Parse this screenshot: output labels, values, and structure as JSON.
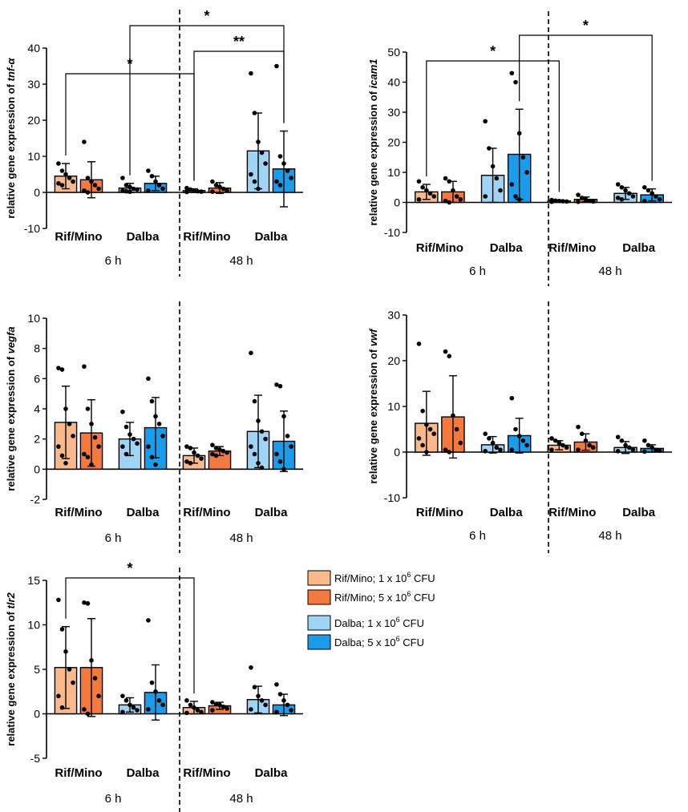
{
  "chart_data": [
    {
      "type": "bar",
      "ylabel": "relative gene expression of",
      "gene": "tnf-α",
      "ylim": [
        -10,
        40
      ],
      "yticks": [
        "-10",
        "0",
        "10",
        "20",
        "30",
        "40"
      ],
      "timepoints": [
        "6 h",
        "48 h"
      ],
      "groups": [
        "Rif/Mino",
        "Dalba",
        "Rif/Mino",
        "Dalba"
      ],
      "series": [
        {
          "name": "Rif/Mino; 1 x 10^6 CFU",
          "group": 0,
          "mean": 4.5,
          "sd": 3.5,
          "points": [
            8,
            6,
            5,
            4,
            3,
            2.5,
            2
          ]
        },
        {
          "name": "Rif/Mino; 5 x 10^6 CFU",
          "group": 0,
          "mean": 3.5,
          "sd": 5,
          "points": [
            14,
            4,
            3,
            2,
            1,
            0.5,
            0
          ]
        },
        {
          "name": "Dalba; 1 x 10^6 CFU",
          "group": 1,
          "mean": 1.2,
          "sd": 1.3,
          "points": [
            4,
            2,
            1.5,
            1,
            0.8,
            0.5,
            0.3,
            0.2
          ]
        },
        {
          "name": "Dalba; 5 x 10^6 CFU",
          "group": 1,
          "mean": 2.5,
          "sd": 2,
          "points": [
            6,
            4.5,
            3,
            2,
            1,
            0.5
          ]
        },
        {
          "name": "Rif/Mino; 1 x 10^6 CFU",
          "group": 2,
          "mean": 0.5,
          "sd": 0.5,
          "points": [
            1.2,
            0.8,
            0.5,
            0.3,
            0.2,
            0.1
          ]
        },
        {
          "name": "Rif/Mino; 5 x 10^6 CFU",
          "group": 2,
          "mean": 1.2,
          "sd": 1.5,
          "points": [
            3,
            2,
            1.5,
            1,
            0.5,
            0.2
          ]
        },
        {
          "name": "Dalba; 1 x 10^6 CFU",
          "group": 3,
          "mean": 11.5,
          "sd": 10.5,
          "points": [
            33,
            22,
            14,
            11,
            8,
            5,
            3,
            1
          ]
        },
        {
          "name": "Dalba; 5 x 10^6 CFU",
          "group": 3,
          "mean": 6.5,
          "sd": 10.5,
          "points": [
            35,
            10,
            8,
            6,
            4,
            3,
            2
          ]
        }
      ],
      "significance": [
        {
          "from": 0,
          "to": 4,
          "label": "*"
        },
        {
          "from": 4,
          "to": 7,
          "label": "**"
        },
        {
          "from": 2,
          "to": 7,
          "label": "*"
        }
      ]
    },
    {
      "type": "bar",
      "ylabel": "relative gene expression of",
      "gene": "icam1",
      "ylim": [
        -10,
        50
      ],
      "yticks": [
        "-10",
        "0",
        "10",
        "20",
        "30",
        "40",
        "50"
      ],
      "timepoints": [
        "6 h",
        "48 h"
      ],
      "groups": [
        "Rif/Mino",
        "Dalba",
        "Rif/Mino",
        "Dalba"
      ],
      "series": [
        {
          "name": "Rif/Mino; 1 x 10^6 CFU",
          "group": 0,
          "mean": 3.5,
          "sd": 2.5,
          "points": [
            7,
            5,
            4,
            3,
            2,
            1
          ]
        },
        {
          "name": "Rif/Mino; 5 x 10^6 CFU",
          "group": 0,
          "mean": 3.5,
          "sd": 3.5,
          "points": [
            8,
            7,
            4,
            2,
            1,
            0.5,
            0
          ]
        },
        {
          "name": "Dalba; 1 x 10^6 CFU",
          "group": 1,
          "mean": 9,
          "sd": 9,
          "points": [
            27,
            18,
            12,
            8,
            4,
            2
          ]
        },
        {
          "name": "Dalba; 5 x 10^6 CFU",
          "group": 1,
          "mean": 16,
          "sd": 15,
          "points": [
            43,
            40,
            23,
            15,
            10,
            6,
            2,
            1
          ]
        },
        {
          "name": "Rif/Mino; 1 x 10^6 CFU",
          "group": 2,
          "mean": 0.5,
          "sd": 0.3,
          "points": [
            0.8,
            0.6,
            0.5,
            0.4,
            0.3,
            0.2
          ]
        },
        {
          "name": "Rif/Mino; 5 x 10^6 CFU",
          "group": 2,
          "mean": 1,
          "sd": 0.8,
          "points": [
            2.5,
            1.5,
            1,
            0.5,
            0.3,
            0.2
          ]
        },
        {
          "name": "Dalba; 1 x 10^6 CFU",
          "group": 3,
          "mean": 3,
          "sd": 2,
          "points": [
            6,
            5,
            4,
            3,
            2,
            1.5,
            1
          ]
        },
        {
          "name": "Dalba; 5 x 10^6 CFU",
          "group": 3,
          "mean": 2.5,
          "sd": 2,
          "points": [
            5,
            4,
            3,
            2,
            1,
            0.5
          ]
        }
      ],
      "significance": [
        {
          "from": 0,
          "to": 4,
          "label": "*"
        },
        {
          "from": 3,
          "to": 7,
          "label": "*"
        }
      ]
    },
    {
      "type": "bar",
      "ylabel": "relative gene expression of",
      "gene": "vegfa",
      "ylim": [
        -2,
        10
      ],
      "yticks": [
        "-2",
        "0",
        "2",
        "4",
        "6",
        "8",
        "10"
      ],
      "timepoints": [
        "6 h",
        "48 h"
      ],
      "groups": [
        "Rif/Mino",
        "Dalba",
        "Rif/Mino",
        "Dalba"
      ],
      "series": [
        {
          "name": "Rif/Mino; 1 x 10^6 CFU",
          "group": 0,
          "mean": 3.1,
          "sd": 2.4,
          "points": [
            6.7,
            6.6,
            4,
            3,
            2.2,
            1.5,
            0.9,
            0.4
          ]
        },
        {
          "name": "Rif/Mino; 5 x 10^6 CFU",
          "group": 0,
          "mean": 2.4,
          "sd": 2.2,
          "points": [
            6.8,
            4,
            3,
            2.1,
            1.5,
            1,
            0.8,
            0.3
          ]
        },
        {
          "name": "Dalba; 1 x 10^6 CFU",
          "group": 1,
          "mean": 2.0,
          "sd": 1.1,
          "points": [
            3.8,
            2.8,
            2.3,
            2,
            1.7,
            1.5,
            1
          ]
        },
        {
          "name": "Dalba; 5 x 10^6 CFU",
          "group": 1,
          "mean": 2.75,
          "sd": 2,
          "points": [
            6,
            4.5,
            3.5,
            3,
            2.2,
            1.5,
            0.8,
            0.3
          ]
        },
        {
          "name": "Rif/Mino; 1 x 10^6 CFU",
          "group": 2,
          "mean": 0.9,
          "sd": 0.5,
          "points": [
            1.5,
            1.4,
            1.1,
            0.9,
            0.7,
            0.5,
            0.4
          ]
        },
        {
          "name": "Rif/Mino; 5 x 10^6 CFU",
          "group": 2,
          "mean": 1.2,
          "sd": 0.3,
          "points": [
            1.6,
            1.4,
            1.3,
            1.2,
            1.1,
            1,
            0.9
          ]
        },
        {
          "name": "Dalba; 1 x 10^6 CFU",
          "group": 3,
          "mean": 2.5,
          "sd": 2.4,
          "points": [
            7.7,
            4.5,
            3.2,
            2.5,
            2,
            1.5,
            1,
            0.4,
            0.1
          ]
        },
        {
          "name": "Dalba; 5 x 10^6 CFU",
          "group": 3,
          "mean": 1.85,
          "sd": 2,
          "points": [
            5.6,
            5.5,
            3.5,
            2.2,
            1.5,
            1,
            0.5,
            0
          ]
        }
      ],
      "significance": []
    },
    {
      "type": "bar",
      "ylabel": "relative gene expression of",
      "gene": "vwf",
      "ylim": [
        -10,
        30
      ],
      "yticks": [
        "-10",
        "0",
        "10",
        "20",
        "30"
      ],
      "timepoints": [
        "6 h",
        "48 h"
      ],
      "groups": [
        "Rif/Mino",
        "Dalba",
        "Rif/Mino",
        "Dalba"
      ],
      "series": [
        {
          "name": "Rif/Mino; 1 x 10^6 CFU",
          "group": 0,
          "mean": 6.3,
          "sd": 7,
          "points": [
            23.7,
            9,
            6,
            5,
            4,
            3,
            1.5,
            0
          ]
        },
        {
          "name": "Rif/Mino; 5 x 10^6 CFU",
          "group": 0,
          "mean": 7.7,
          "sd": 9,
          "points": [
            22,
            21,
            8,
            5,
            2,
            0.5,
            0
          ]
        },
        {
          "name": "Dalba; 1 x 10^6 CFU",
          "group": 1,
          "mean": 1.6,
          "sd": 1.8,
          "points": [
            4,
            3,
            2,
            1,
            0.5,
            0.2
          ]
        },
        {
          "name": "Dalba; 5 x 10^6 CFU",
          "group": 1,
          "mean": 3.6,
          "sd": 3.8,
          "points": [
            11.8,
            5,
            3.5,
            2.5,
            1.5,
            0.5
          ]
        },
        {
          "name": "Rif/Mino; 1 x 10^6 CFU",
          "group": 2,
          "mean": 1.5,
          "sd": 1,
          "points": [
            3,
            2.5,
            2,
            1.5,
            1,
            0.5
          ]
        },
        {
          "name": "Rif/Mino; 5 x 10^6 CFU",
          "group": 2,
          "mean": 2.2,
          "sd": 1.8,
          "points": [
            5.5,
            4,
            2.5,
            1.5,
            1,
            0.5
          ]
        },
        {
          "name": "Dalba; 1 x 10^6 CFU",
          "group": 3,
          "mean": 1,
          "sd": 1.3,
          "points": [
            3.3,
            2.5,
            1.5,
            1,
            0.5,
            0.2
          ]
        },
        {
          "name": "Dalba; 5 x 10^6 CFU",
          "group": 3,
          "mean": 0.8,
          "sd": 0.8,
          "points": [
            2.5,
            1.5,
            1,
            0.5,
            0.3,
            0.1
          ]
        }
      ],
      "significance": []
    },
    {
      "type": "bar",
      "ylabel": "relative gene expression of",
      "gene": "tlr2",
      "ylim": [
        -5,
        15
      ],
      "yticks": [
        "-5",
        "0",
        "5",
        "10",
        "15"
      ],
      "timepoints": [
        "6 h",
        "48 h"
      ],
      "groups": [
        "Rif/Mino",
        "Dalba",
        "Rif/Mino",
        "Dalba"
      ],
      "series": [
        {
          "name": "Rif/Mino; 1 x 10^6 CFU",
          "group": 0,
          "mean": 5.2,
          "sd": 4.6,
          "points": [
            12.8,
            9.5,
            7,
            5,
            3.5,
            2,
            0.7
          ]
        },
        {
          "name": "Rif/Mino; 5 x 10^6 CFU",
          "group": 0,
          "mean": 5.2,
          "sd": 5.5,
          "points": [
            12.5,
            12.4,
            6,
            4,
            2,
            0.5,
            0
          ]
        },
        {
          "name": "Dalba; 1 x 10^6 CFU",
          "group": 1,
          "mean": 1,
          "sd": 0.8,
          "points": [
            2,
            1.5,
            1,
            0.7,
            0.4,
            0.2
          ]
        },
        {
          "name": "Dalba; 5 x 10^6 CFU",
          "group": 1,
          "mean": 2.4,
          "sd": 3.1,
          "points": [
            10.5,
            3.5,
            2.5,
            1.5,
            1,
            0.5
          ]
        },
        {
          "name": "Rif/Mino; 1 x 10^6 CFU",
          "group": 2,
          "mean": 0.7,
          "sd": 0.7,
          "points": [
            1.5,
            1,
            0.7,
            0.4,
            0.2,
            0.1
          ]
        },
        {
          "name": "Rif/Mino; 5 x 10^6 CFU",
          "group": 2,
          "mean": 0.9,
          "sd": 0.4,
          "points": [
            1.3,
            1.1,
            1,
            0.8,
            0.6,
            0.4
          ]
        },
        {
          "name": "Dalba; 1 x 10^6 CFU",
          "group": 3,
          "mean": 1.6,
          "sd": 1.5,
          "points": [
            5.2,
            3,
            2,
            1.5,
            1,
            0.5
          ]
        },
        {
          "name": "Dalba; 5 x 10^6 CFU",
          "group": 3,
          "mean": 1,
          "sd": 1.2,
          "points": [
            3.3,
            2.2,
            1.5,
            1,
            0.4,
            0.2
          ]
        }
      ],
      "significance": [
        {
          "from": 0,
          "to": 4,
          "label": "*"
        }
      ]
    }
  ],
  "legend": [
    {
      "label": "Rif/Mino; 1 x 10",
      "exp": "6",
      "unit": " CFU",
      "color": "#f9b98d"
    },
    {
      "label": "Rif/Mino; 5 x 10",
      "exp": "6",
      "unit": " CFU",
      "color": "#f37a3e"
    },
    {
      "label": "Dalba; 1 x 10",
      "exp": "6",
      "unit": " CFU",
      "color": "#9fd4f5"
    },
    {
      "label": "Dalba; 5 x 10",
      "exp": "6",
      "unit": " CFU",
      "color": "#1c9be9"
    }
  ],
  "colors": {
    "rif_1": "#f9b98d",
    "rif_5": "#f37a3e",
    "dalba_1": "#9fd4f5",
    "dalba_5": "#1c9be9"
  }
}
